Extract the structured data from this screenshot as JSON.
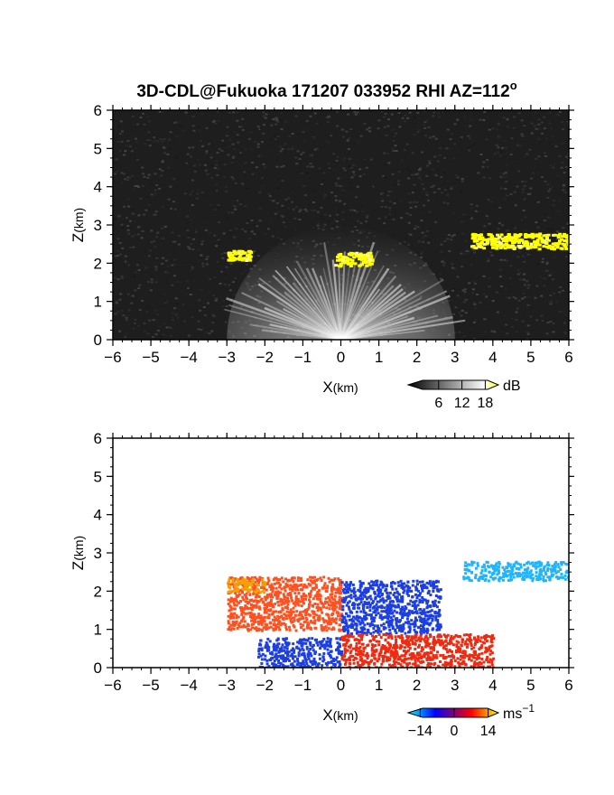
{
  "figure": {
    "title": "3D-CDL@Fukuoka 171207 033952 RHI AZ=112",
    "title_superscript": "o"
  },
  "chart_data": [
    {
      "type": "heatmap",
      "name": "backscatter",
      "xlabel_main": "X",
      "xlabel_unit": "(km)",
      "ylabel_main": "Z",
      "ylabel_unit": "(km)",
      "xlim": [
        -6,
        6
      ],
      "ylim": [
        0,
        6
      ],
      "xticks": [
        -6,
        -5,
        -4,
        -3,
        -2,
        -1,
        0,
        1,
        2,
        3,
        4,
        5,
        6
      ],
      "yticks": [
        0,
        1,
        2,
        3,
        4,
        5,
        6
      ],
      "background_color": "#1e1e1e",
      "features": [
        {
          "kind": "fan",
          "center_x": 0,
          "max_range_km": 3.0,
          "description": "bright radial fan near radar"
        },
        {
          "kind": "cloud",
          "x_range": [
            -3.0,
            -2.4
          ],
          "z_range": [
            2.1,
            2.35
          ],
          "color": "#ffff00"
        },
        {
          "kind": "cloud",
          "x_range": [
            -0.2,
            0.8
          ],
          "z_range": [
            1.95,
            2.3
          ],
          "color": "#ffff00"
        },
        {
          "kind": "cloud",
          "x_range": [
            3.4,
            6.0
          ],
          "z_range": [
            2.4,
            2.8
          ],
          "color": "#ffff00"
        }
      ],
      "colorbar": {
        "unit": "dB",
        "ticks": [
          6,
          12,
          18
        ],
        "range": [
          0,
          20
        ],
        "colors": [
          "#000000",
          "#ffffff",
          "#ffff00"
        ]
      }
    },
    {
      "type": "heatmap",
      "name": "doppler_velocity",
      "xlabel_main": "X",
      "xlabel_unit": "(km)",
      "ylabel_main": "Z",
      "ylabel_unit": "(km)",
      "xlim": [
        -6,
        6
      ],
      "ylim": [
        0,
        6
      ],
      "xticks": [
        -6,
        -5,
        -4,
        -3,
        -2,
        -1,
        0,
        1,
        2,
        3,
        4,
        5,
        6
      ],
      "yticks": [
        0,
        1,
        2,
        3,
        4,
        5,
        6
      ],
      "features": [
        {
          "kind": "region",
          "x_range": [
            -3.0,
            0.0
          ],
          "z_range": [
            1.0,
            2.4
          ],
          "velocity": 8,
          "color": "#ff5020"
        },
        {
          "kind": "region",
          "x_range": [
            -3.0,
            -2.0
          ],
          "z_range": [
            2.0,
            2.35
          ],
          "velocity": 13,
          "color": "#f5a000"
        },
        {
          "kind": "region",
          "x_range": [
            0.0,
            2.6
          ],
          "z_range": [
            0.9,
            2.3
          ],
          "velocity": -9,
          "color": "#1d3fe0"
        },
        {
          "kind": "region",
          "x_range": [
            -2.2,
            0.0
          ],
          "z_range": [
            0.0,
            0.8
          ],
          "velocity": -9,
          "color": "#1d3fe0"
        },
        {
          "kind": "region",
          "x_range": [
            0.0,
            4.0
          ],
          "z_range": [
            0.0,
            0.9
          ],
          "velocity": 7,
          "color": "#ee2a10"
        },
        {
          "kind": "region",
          "x_range": [
            3.2,
            6.0
          ],
          "z_range": [
            2.3,
            2.8
          ],
          "velocity": -12,
          "color": "#20b4ff"
        }
      ],
      "colorbar": {
        "unit": "ms",
        "unit_superscript": "−1",
        "ticks": [
          -14,
          0,
          14
        ],
        "range": [
          -16,
          16
        ],
        "colors": [
          "#00ffff",
          "#0000ff",
          "#ff0000",
          "#ffff00"
        ]
      }
    }
  ]
}
